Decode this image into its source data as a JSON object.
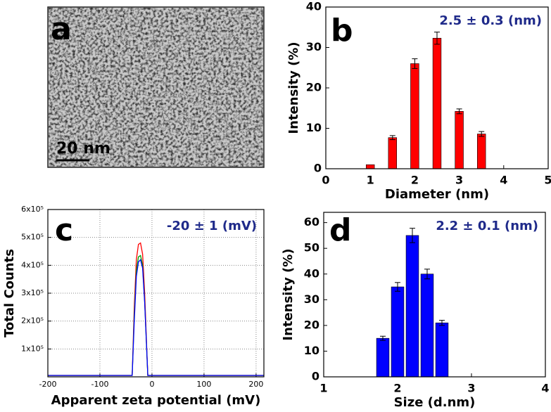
{
  "image_panel": {
    "label": "a",
    "scale_bar": "20 nm"
  },
  "chart_data": [
    {
      "type": "bar",
      "panel_label": "b",
      "annotation": "2.5 ± 0.3 (nm)",
      "xlabel": "Diameter (nm)",
      "ylabel": "Intensity (%)",
      "x": [
        1,
        1.5,
        2,
        2.5,
        3,
        3.5
      ],
      "values": [
        1,
        7.7,
        26,
        32.3,
        14.2,
        8.6
      ],
      "errors": [
        0,
        0.5,
        1.2,
        1.5,
        0.6,
        0.6
      ],
      "color": "#ff0000",
      "xlim": [
        0,
        5
      ],
      "xticks": [
        0,
        1,
        2,
        3,
        4,
        5
      ],
      "ylim": [
        0,
        40
      ],
      "yticks": [
        0,
        10,
        20,
        30,
        40
      ]
    },
    {
      "type": "line",
      "panel_label": "c",
      "annotation": "-20 ± 1 (mV)",
      "xlabel": "Apparent zeta potential (mV)",
      "ylabel": "Total Counts",
      "x": [
        -200,
        -38,
        -34,
        -30,
        -26,
        -22,
        -18,
        -14,
        -10,
        -8,
        215
      ],
      "series": [
        {
          "color": "#ff0000",
          "values": [
            5000,
            5000,
            250000,
            420000,
            475000,
            480000,
            440000,
            300000,
            100000,
            5000,
            5000
          ]
        },
        {
          "color": "#00a000",
          "values": [
            5000,
            5000,
            220000,
            380000,
            430000,
            435000,
            400000,
            270000,
            90000,
            5000,
            5000
          ]
        },
        {
          "color": "#0000ff",
          "values": [
            5000,
            5000,
            200000,
            360000,
            412000,
            420000,
            390000,
            265000,
            95000,
            5000,
            5000
          ]
        }
      ],
      "xlim": [
        -200,
        215
      ],
      "xticks": [
        -200,
        -100,
        0,
        100,
        200
      ],
      "ylim": [
        0,
        600000
      ],
      "yticks": [
        {
          "value": 100000,
          "label": "1x10⁵"
        },
        {
          "value": 200000,
          "label": "2x10⁵"
        },
        {
          "value": 300000,
          "label": "3x10⁵"
        },
        {
          "value": 400000,
          "label": "4x10⁵"
        },
        {
          "value": 500000,
          "label": "5x10⁵"
        },
        {
          "value": 600000,
          "label": "6x10⁵"
        }
      ],
      "grid": true
    },
    {
      "type": "bar",
      "panel_label": "d",
      "annotation": "2.2 ± 0.1 (nm)",
      "xlabel": "Size (d.nm)",
      "ylabel": "Intensity (%)",
      "x": [
        1.8,
        2,
        2.2,
        2.4,
        2.6
      ],
      "values": [
        15,
        35,
        55,
        40,
        21
      ],
      "errors": [
        0.8,
        1.7,
        2.8,
        1.9,
        1
      ],
      "color": "#0000ff",
      "xlim": [
        1,
        4
      ],
      "xticks": [
        1,
        2,
        3,
        4
      ],
      "ylim": [
        0,
        64
      ],
      "yticks": [
        0,
        10,
        20,
        30,
        40,
        50,
        60
      ]
    }
  ]
}
